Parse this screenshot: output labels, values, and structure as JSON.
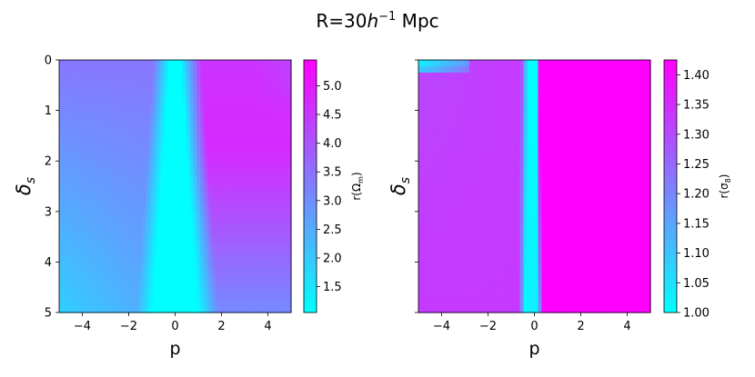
{
  "figure": {
    "title_main": "R=30",
    "title_h": "h",
    "title_exp": "−1",
    "title_unit": " Mpc"
  },
  "chart_data": [
    {
      "type": "heatmap",
      "xlabel": "p",
      "ylabel_main": "δ",
      "ylabel_sub": "s",
      "xlim": [
        -5,
        5
      ],
      "ylim": [
        0,
        5
      ],
      "y_inverted": true,
      "xticks": [
        -4,
        -2,
        0,
        2,
        4
      ],
      "xtick_labels": [
        "−4",
        "−2",
        "0",
        "2",
        "4"
      ],
      "yticks": [
        0,
        1,
        2,
        3,
        4,
        5
      ],
      "ytick_labels": [
        "0",
        "1",
        "2",
        "3",
        "4",
        "5"
      ],
      "colormap": "cool",
      "colorbar": {
        "label_main": "r(Ω",
        "label_sub": "m",
        "label_end": ")",
        "range": [
          1.05,
          5.45
        ],
        "ticks": [
          1.5,
          2.0,
          2.5,
          3.0,
          3.5,
          4.0,
          4.5,
          5.0
        ],
        "tick_labels": [
          "1.5",
          "2.0",
          "2.5",
          "3.0",
          "3.5",
          "4.0",
          "4.5",
          "5.0"
        ]
      },
      "field": {
        "model": "cone",
        "center_x": 0.0,
        "min_value": 1.05,
        "max_value": 5.45,
        "right_max_value": 5.45,
        "left_value": 3.4
      }
    },
    {
      "type": "heatmap",
      "xlabel": "p",
      "ylabel_main": "δ",
      "ylabel_sub": "s",
      "xlim": [
        -5,
        5
      ],
      "ylim": [
        0,
        5
      ],
      "y_inverted": true,
      "xticks": [
        -4,
        -2,
        0,
        2,
        4
      ],
      "xtick_labels": [
        "−4",
        "−2",
        "0",
        "2",
        "4"
      ],
      "yticks": [
        0,
        1,
        2,
        3,
        4,
        5
      ],
      "ytick_labels": [],
      "colormap": "cool",
      "colorbar": {
        "label_main": "r(σ",
        "label_sub": "8",
        "label_end": ")",
        "range": [
          1.0,
          1.425
        ],
        "ticks": [
          1.0,
          1.05,
          1.1,
          1.15,
          1.2,
          1.25,
          1.3,
          1.35,
          1.4
        ],
        "tick_labels": [
          "1.00",
          "1.05",
          "1.10",
          "1.15",
          "1.20",
          "1.25",
          "1.30",
          "1.35",
          "1.40"
        ]
      },
      "field": {
        "model": "band",
        "center_x": -0.1,
        "min_value": 1.0,
        "max_value": 1.425,
        "right_max_value": 1.425,
        "left_value": 1.33
      }
    }
  ]
}
